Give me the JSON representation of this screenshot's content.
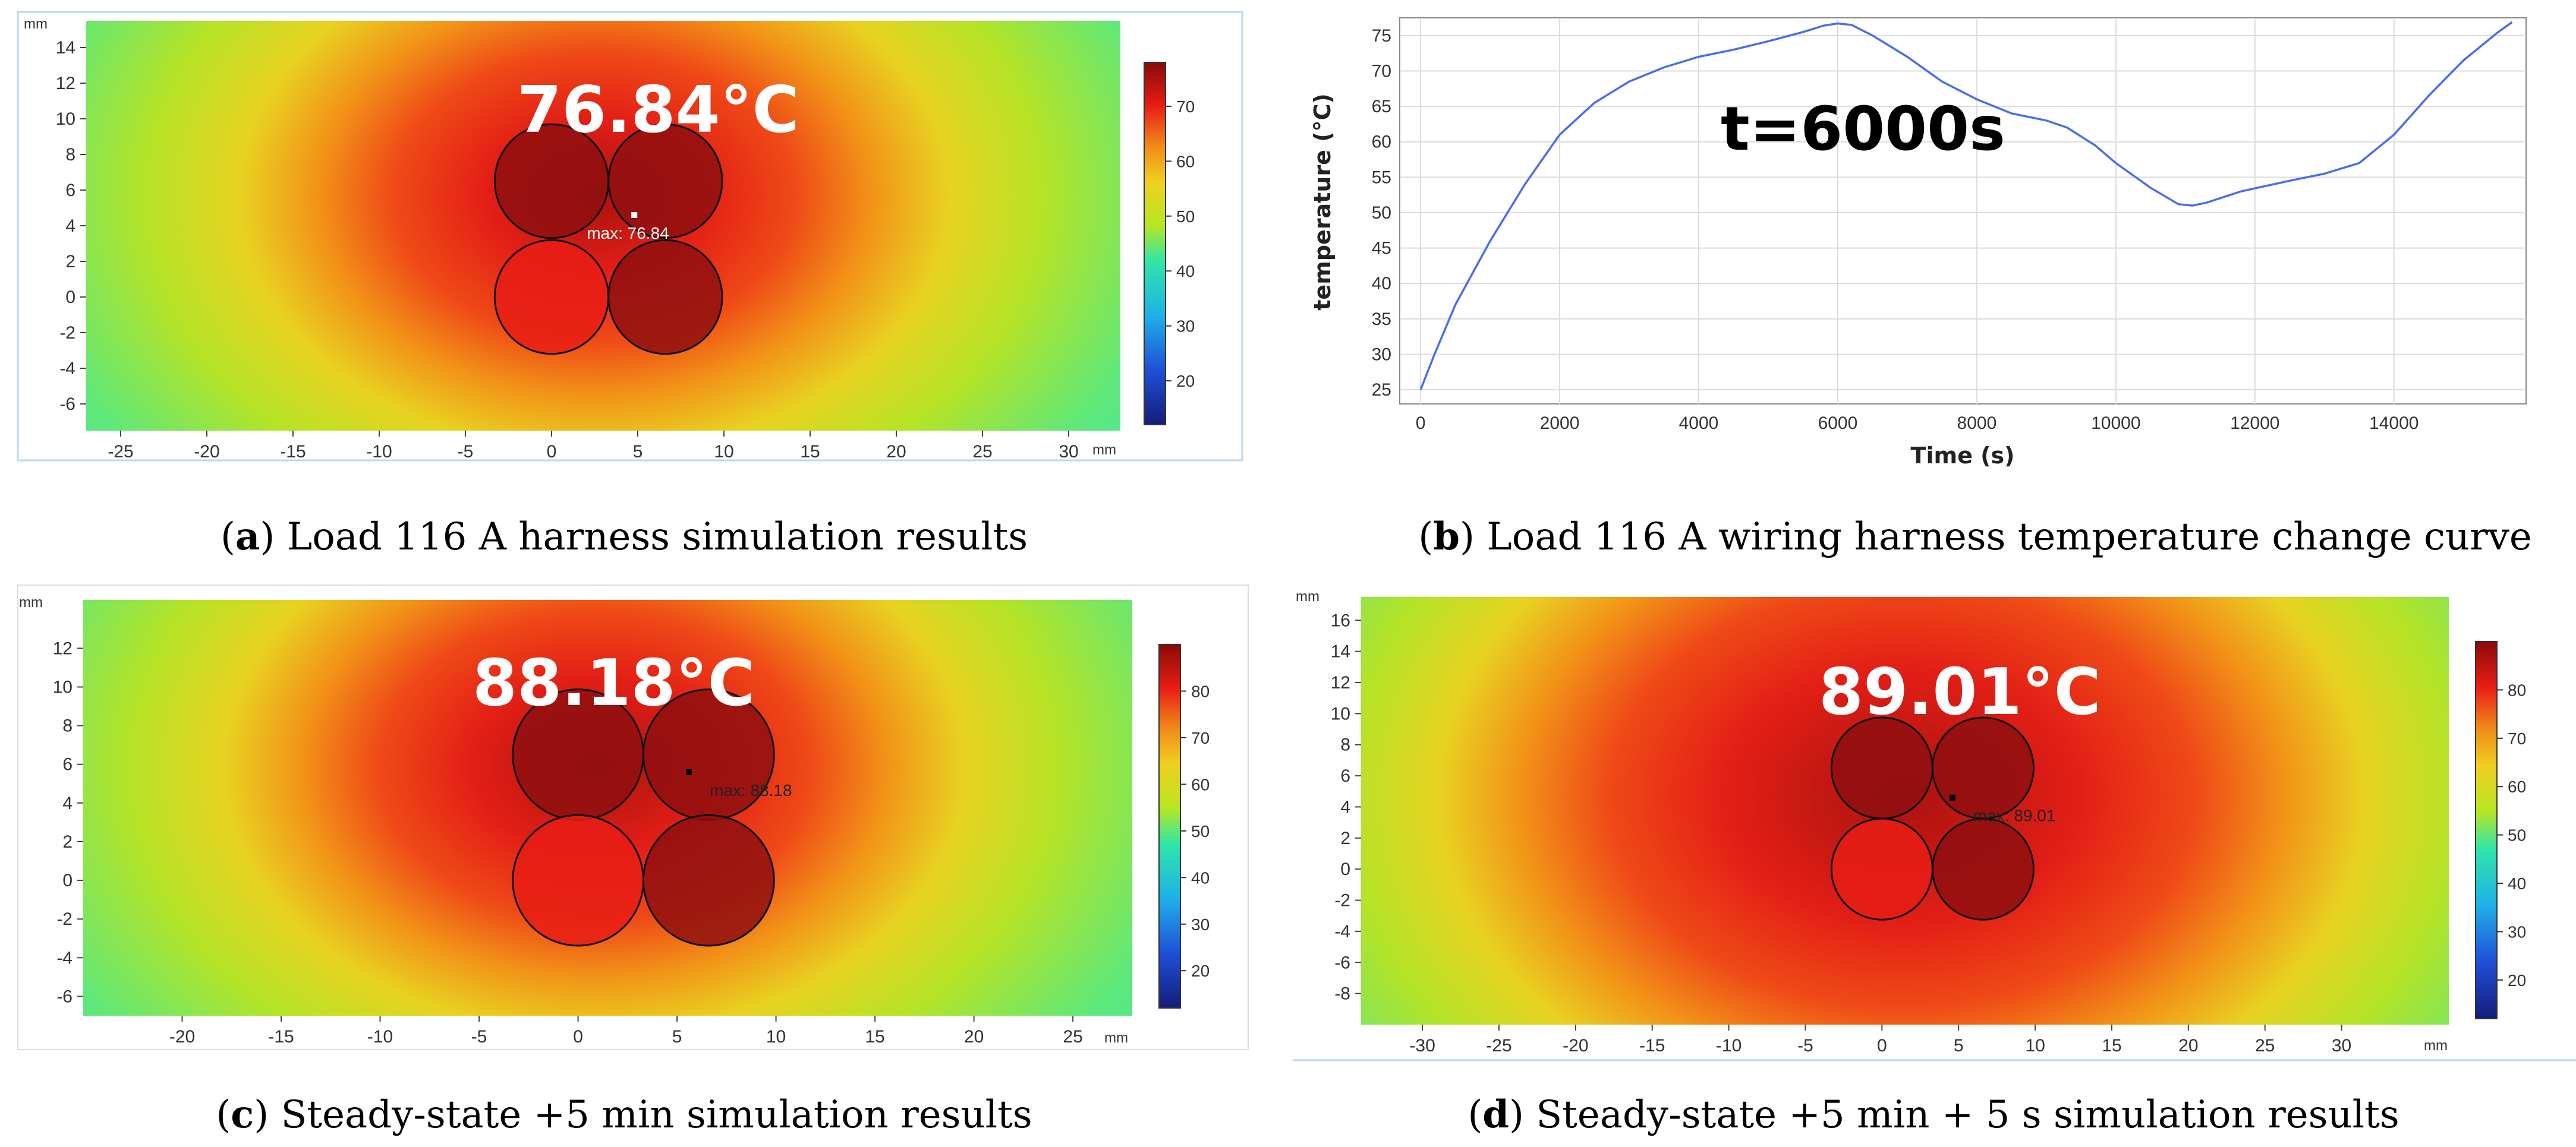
{
  "captions": {
    "a": {
      "letter": "a",
      "rest": ") Load 116 A harness simulation results"
    },
    "b": {
      "letter": "b",
      "rest": ") Load 116 A wiring harness temperature change curve"
    },
    "c": {
      "letter": "c",
      "rest": ") Steady-state +5 min simulation results"
    },
    "d": {
      "letter": "d",
      "rest": ") Steady-state +5 min + 5 s simulation results"
    }
  },
  "colors": {
    "hot": "#e81d14",
    "hot_dark": "#8f0f0f",
    "mid": "#f0a018",
    "cool": "#c8e620",
    "cold": "#30e6b8",
    "line": "#4a6ee8",
    "grid": "#dcdcdc"
  },
  "chart_data": [
    {
      "id": "a",
      "type": "heatmap",
      "unit_label": "mm",
      "peak_label": "76.84°C",
      "max_marker": "max: 76.84",
      "x_range": [
        -27,
        33
      ],
      "y_range": [
        -7.5,
        15.5
      ],
      "x_ticks": [
        "-25",
        "-20",
        "-15",
        "-10",
        "-5",
        "0",
        "5",
        "10",
        "15",
        "20",
        "25",
        "30"
      ],
      "y_ticks": [
        "14",
        "12",
        "10",
        "8",
        "6",
        "4",
        "2",
        "0",
        "-2",
        "-4",
        "-6"
      ],
      "colorbar_range": [
        12,
        78
      ],
      "colorbar_ticks": [
        "70",
        "60",
        "50",
        "40",
        "30",
        "20"
      ],
      "conductors": [
        [
          0,
          6.5
        ],
        [
          6.6,
          6.5
        ],
        [
          0,
          0
        ],
        [
          6.6,
          0
        ]
      ],
      "conductor_radius": 3.3,
      "max_point": [
        4.8,
        4.6
      ]
    },
    {
      "id": "b",
      "type": "line",
      "xlabel": "Time  (s)",
      "ylabel": "temperature   (°C)",
      "annotation": "t=6000s",
      "x_range": [
        -300,
        15900
      ],
      "y_range": [
        23,
        77.5
      ],
      "x_ticks": [
        "0",
        "2000",
        "4000",
        "6000",
        "8000",
        "10000",
        "12000",
        "14000"
      ],
      "y_ticks": [
        "75",
        "70",
        "65",
        "60",
        "55",
        "50",
        "45",
        "40",
        "35",
        "30",
        "25"
      ],
      "series": [
        {
          "name": "temperature",
          "x": [
            0,
            200,
            500,
            1000,
            1500,
            2000,
            2500,
            3000,
            3500,
            4000,
            4500,
            5000,
            5500,
            5800,
            6000,
            6200,
            6500,
            7000,
            7500,
            8000,
            8500,
            9000,
            9300,
            9700,
            10000,
            10500,
            10900,
            11100,
            11300,
            11800,
            12500,
            13000,
            13500,
            14000,
            14500,
            15000,
            15500,
            15700
          ],
          "y": [
            25,
            30,
            37,
            46,
            54,
            61,
            65.5,
            68.5,
            70.5,
            72,
            73,
            74.2,
            75.5,
            76.4,
            76.7,
            76.5,
            75,
            72,
            68.5,
            66,
            64,
            63,
            62,
            59.5,
            57,
            53.5,
            51.2,
            51,
            51.4,
            53,
            54.5,
            55.5,
            57,
            61,
            66.5,
            71.5,
            75.5,
            76.9
          ]
        }
      ]
    },
    {
      "id": "c",
      "type": "heatmap",
      "unit_label": "mm",
      "peak_label": "88.18°C",
      "max_marker": "max: 88.18",
      "x_range": [
        -25,
        28
      ],
      "y_range": [
        -7,
        14.5
      ],
      "x_ticks": [
        "-20",
        "-15",
        "-10",
        "-5",
        "0",
        "5",
        "10",
        "15",
        "20",
        "25"
      ],
      "y_ticks": [
        "12",
        "10",
        "8",
        "6",
        "4",
        "2",
        "0",
        "-2",
        "-4",
        "-6"
      ],
      "colorbar_range": [
        12,
        90
      ],
      "colorbar_ticks": [
        "80",
        "70",
        "60",
        "50",
        "40",
        "30",
        "20"
      ],
      "conductors": [
        [
          0,
          6.5
        ],
        [
          6.6,
          6.5
        ],
        [
          0,
          0
        ],
        [
          6.6,
          0
        ]
      ],
      "conductor_radius": 3.3,
      "max_point": [
        5.6,
        5.6
      ]
    },
    {
      "id": "d",
      "type": "heatmap",
      "unit_label": "mm",
      "peak_label": "89.01°C",
      "max_marker": "max: 89.01",
      "x_range": [
        -34,
        37
      ],
      "y_range": [
        -10,
        17.5
      ],
      "x_ticks": [
        "-30",
        "-25",
        "-20",
        "-15",
        "-10",
        "-5",
        "0",
        "5",
        "10",
        "15",
        "20",
        "25",
        "30"
      ],
      "y_ticks": [
        "16",
        "14",
        "12",
        "10",
        "8",
        "6",
        "4",
        "2",
        "0",
        "-2",
        "-4",
        "-6",
        "-8"
      ],
      "colorbar_range": [
        12,
        90
      ],
      "colorbar_ticks": [
        "80",
        "70",
        "60",
        "50",
        "40",
        "30",
        "20"
      ],
      "conductors": [
        [
          0,
          6.5
        ],
        [
          6.6,
          6.5
        ],
        [
          0,
          0
        ],
        [
          6.6,
          0
        ]
      ],
      "conductor_radius": 3.3,
      "max_point": [
        4.6,
        4.6
      ]
    }
  ]
}
